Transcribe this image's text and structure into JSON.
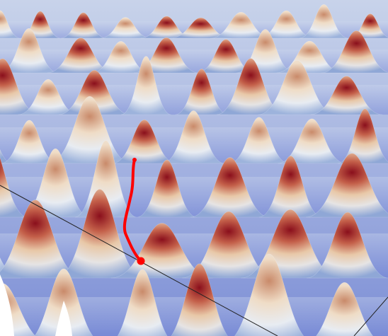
{
  "scene": {
    "colormap": {
      "low": "#2b3fd6",
      "mid_low": "#a9c2e6",
      "mid": "#f1ece2",
      "mid_high": "#d9a27f",
      "high": "#8a0f1c"
    },
    "path_color": "#ff0000",
    "guide_line_color": "#222222",
    "background": "#ffffff"
  }
}
